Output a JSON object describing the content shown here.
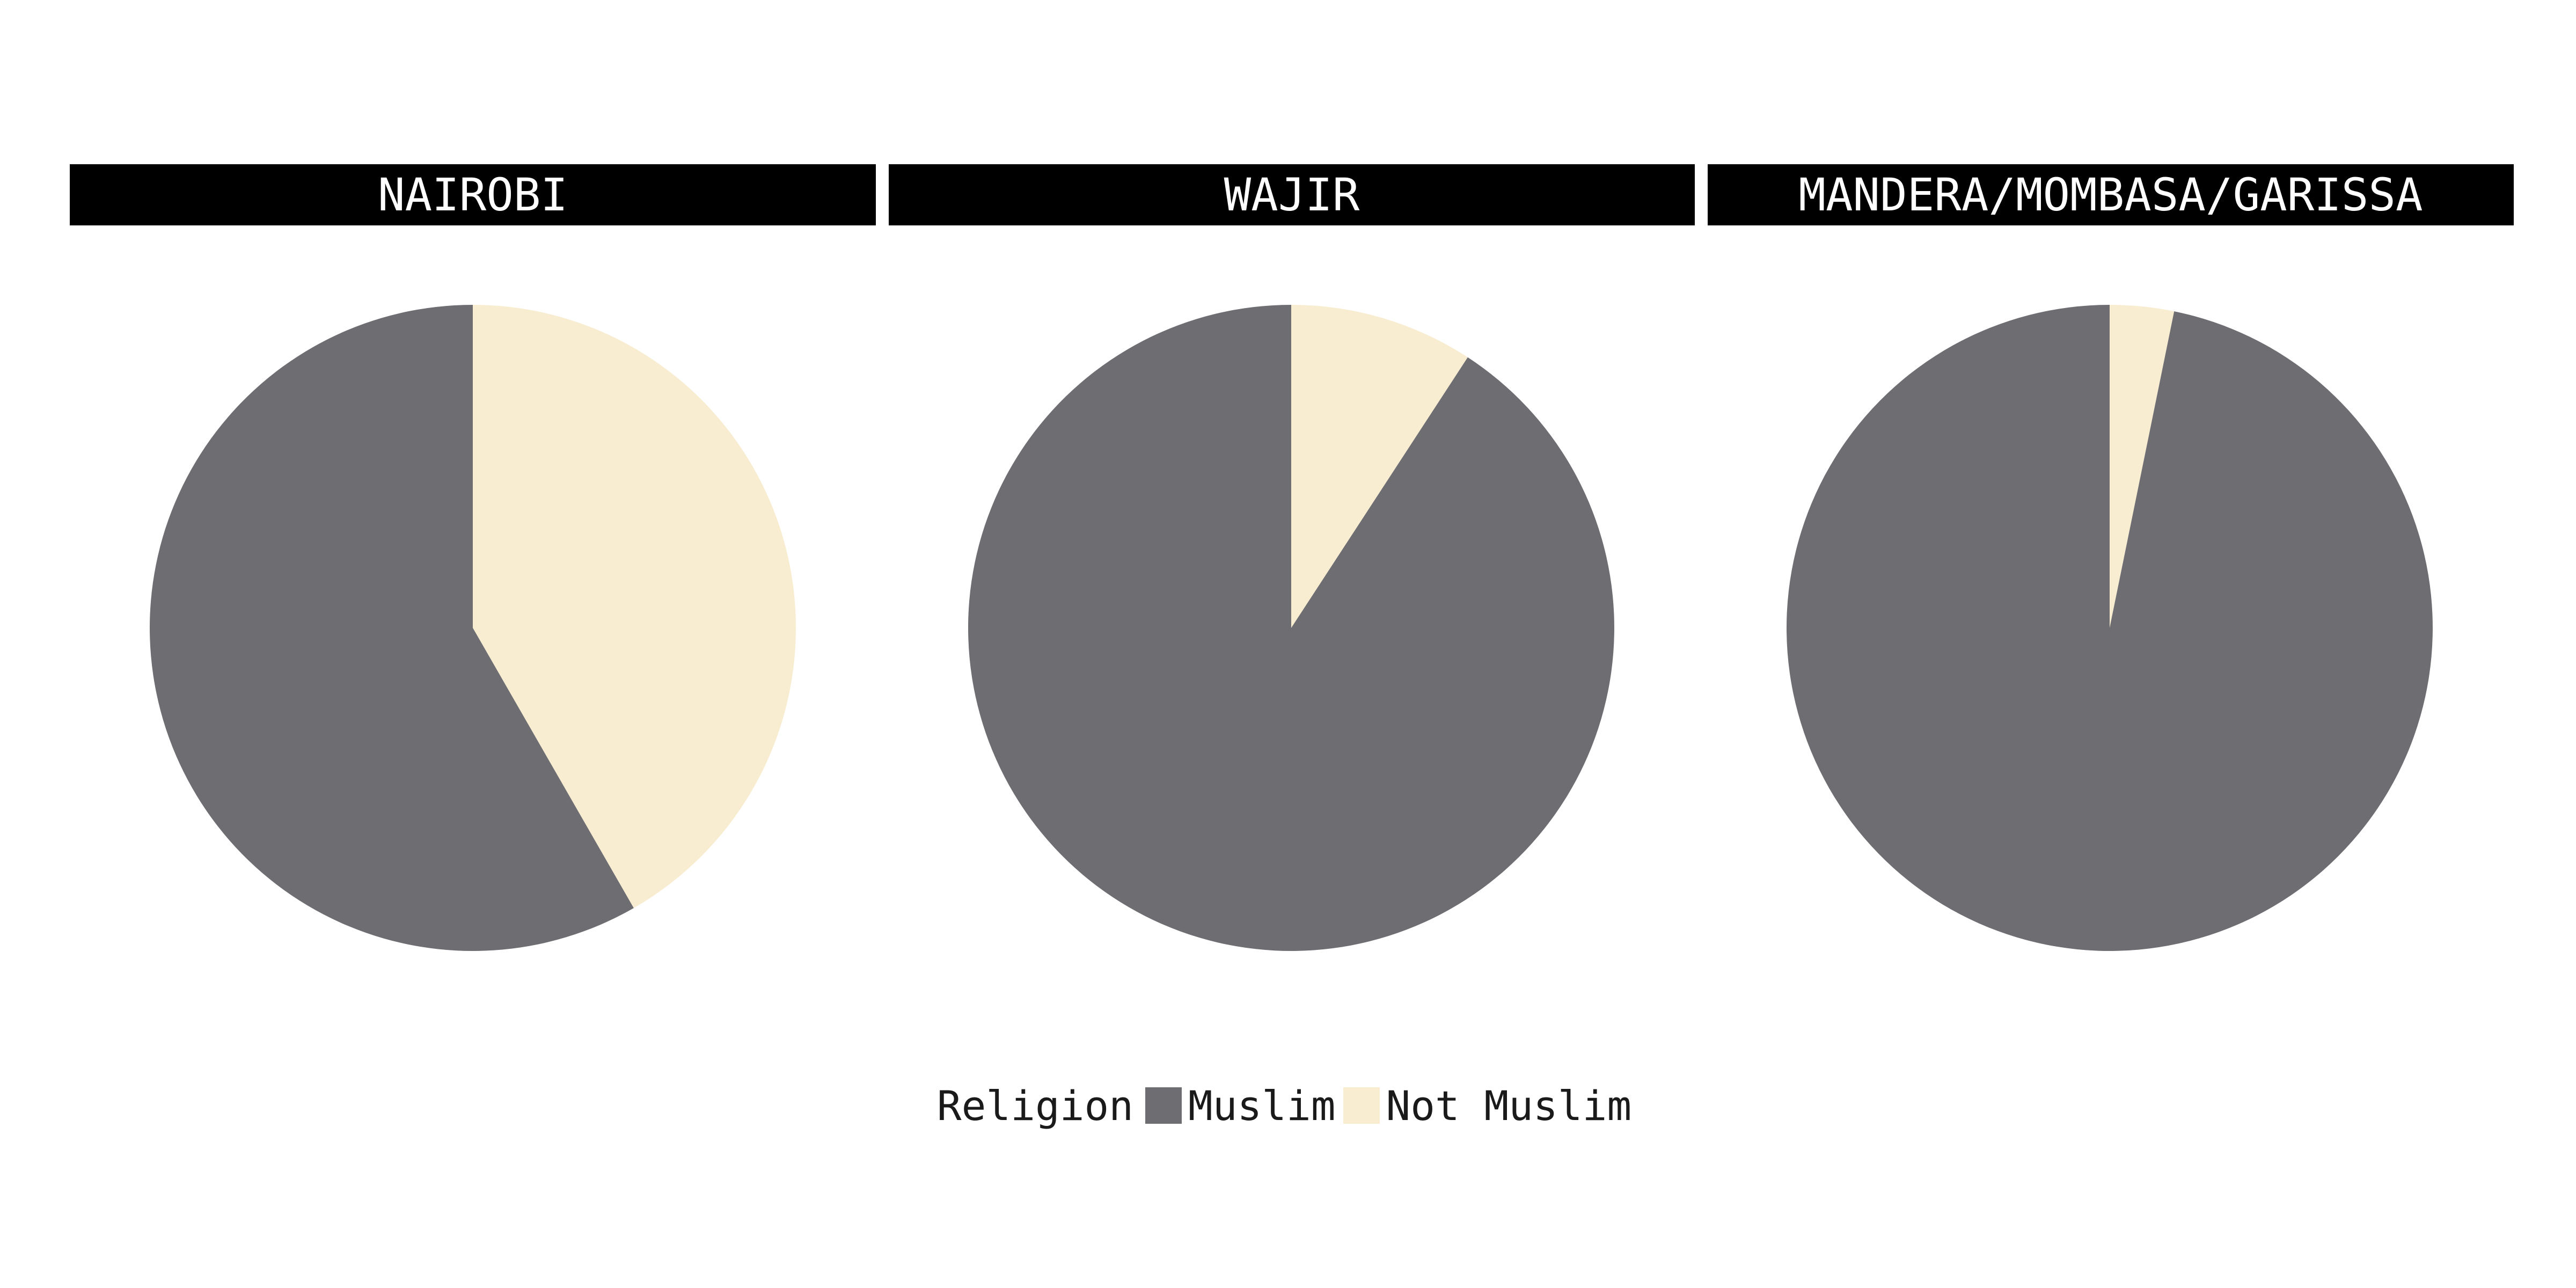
{
  "chart_data": {
    "type": "pie",
    "legend": {
      "title": "Religion",
      "position": "bottom",
      "entries": [
        {
          "label": "Muslim",
          "color": "#6e6d72"
        },
        {
          "label": "Not Muslim",
          "color": "#f8edd1"
        }
      ]
    },
    "facets": [
      {
        "title": "NAIROBI",
        "slices": [
          {
            "label": "Not Muslim",
            "value": 0.417
          },
          {
            "label": "Muslim",
            "value": 0.583
          }
        ]
      },
      {
        "title": "WAJIR",
        "slices": [
          {
            "label": "Not Muslim",
            "value": 0.092
          },
          {
            "label": "Muslim",
            "value": 0.908
          }
        ]
      },
      {
        "title": "MANDERA/MOMBASA/GARISSA",
        "slices": [
          {
            "label": "Not Muslim",
            "value": 0.032
          },
          {
            "label": "Muslim",
            "value": 0.968
          }
        ]
      }
    ]
  }
}
